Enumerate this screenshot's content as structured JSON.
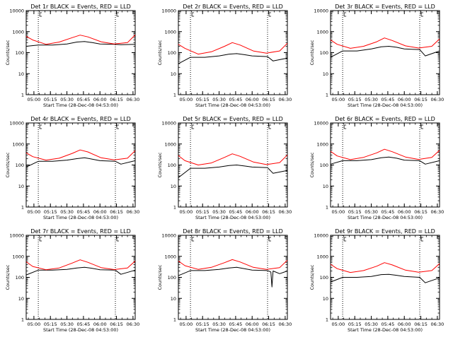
{
  "figure": {
    "xlabel": "Start Time (28-Dec-08 04:53:00)",
    "ylabel": "Counts/sec",
    "x_tick_labels": [
      "05:00",
      "05:15",
      "05:30",
      "05:45",
      "06:00",
      "06:15",
      "06:30"
    ],
    "x_tick_minutes": [
      7,
      22,
      37,
      52,
      67,
      82,
      97
    ],
    "x_range_minutes": [
      0,
      99
    ],
    "y_tick_labels": [
      "1",
      "10",
      "100",
      "1000",
      "10000"
    ],
    "y_range": [
      1,
      10000
    ],
    "y_scale": "log",
    "dotted_line_minutes": [
      11,
      81
    ],
    "colors": {
      "events": "#000000",
      "lld": "#ff0000",
      "axes": "#000000",
      "background": "#ffffff"
    }
  },
  "chart_data": [
    {
      "type": "line",
      "title": "Det 1r BLACK = Events, RED = LLD",
      "series": [
        {
          "x": [
            0,
            11,
            24,
            37,
            46,
            53,
            60,
            67,
            81,
            86,
            99
          ],
          "values": [
            200,
            230,
            230,
            260,
            320,
            340,
            300,
            260,
            250,
            240,
            250
          ]
        },
        {
          "x": [
            0,
            6,
            18,
            30,
            42,
            49,
            56,
            68,
            80,
            92,
            99
          ],
          "values": [
            600,
            400,
            250,
            320,
            520,
            680,
            560,
            330,
            260,
            300,
            700
          ]
        }
      ]
    },
    {
      "type": "line",
      "title": "Det 2r BLACK = Events, RED = LLD",
      "series": [
        {
          "x": [
            0,
            11,
            24,
            37,
            46,
            53,
            60,
            67,
            81,
            86,
            99
          ],
          "values": [
            30,
            60,
            60,
            70,
            85,
            90,
            80,
            70,
            65,
            40,
            55
          ]
        },
        {
          "x": [
            0,
            6,
            18,
            30,
            42,
            49,
            56,
            68,
            80,
            92,
            99
          ],
          "values": [
            250,
            160,
            85,
            110,
            200,
            300,
            230,
            120,
            95,
            120,
            280
          ]
        }
      ]
    },
    {
      "type": "line",
      "title": "Det 3r BLACK = Events, RED = LLD",
      "series": [
        {
          "x": [
            0,
            11,
            24,
            37,
            46,
            53,
            60,
            67,
            81,
            86,
            99
          ],
          "values": [
            60,
            120,
            120,
            150,
            190,
            200,
            180,
            150,
            140,
            70,
            120
          ]
        },
        {
          "x": [
            0,
            6,
            18,
            30,
            42,
            49,
            56,
            68,
            80,
            92,
            99
          ],
          "values": [
            400,
            250,
            160,
            200,
            330,
            500,
            380,
            210,
            165,
            200,
            450
          ]
        }
      ]
    },
    {
      "type": "line",
      "title": "Det 4r BLACK = Events, RED = LLD",
      "series": [
        {
          "x": [
            0,
            11,
            24,
            37,
            46,
            53,
            60,
            67,
            81,
            86,
            99
          ],
          "values": [
            80,
            150,
            150,
            170,
            200,
            220,
            190,
            160,
            150,
            110,
            160
          ]
        },
        {
          "x": [
            0,
            6,
            18,
            30,
            42,
            49,
            56,
            68,
            80,
            92,
            99
          ],
          "values": [
            380,
            250,
            170,
            210,
            360,
            520,
            420,
            220,
            175,
            210,
            480
          ]
        }
      ]
    },
    {
      "type": "line",
      "title": "Det 5r BLACK = Events, RED = LLD",
      "series": [
        {
          "x": [
            0,
            11,
            24,
            37,
            46,
            53,
            60,
            67,
            81,
            86,
            99
          ],
          "values": [
            25,
            70,
            70,
            80,
            95,
            100,
            90,
            80,
            75,
            40,
            55
          ]
        },
        {
          "x": [
            0,
            6,
            18,
            30,
            42,
            49,
            56,
            68,
            80,
            92,
            99
          ],
          "values": [
            280,
            160,
            100,
            125,
            230,
            340,
            260,
            140,
            105,
            130,
            300
          ]
        }
      ]
    },
    {
      "type": "line",
      "title": "Det 6r BLACK = Events, RED = LLD",
      "series": [
        {
          "x": [
            0,
            11,
            24,
            37,
            46,
            53,
            60,
            67,
            81,
            86,
            99
          ],
          "values": [
            110,
            160,
            160,
            180,
            220,
            240,
            210,
            170,
            160,
            110,
            160
          ]
        },
        {
          "x": [
            0,
            6,
            18,
            30,
            42,
            49,
            56,
            68,
            80,
            92,
            99
          ],
          "values": [
            450,
            270,
            180,
            230,
            380,
            560,
            430,
            240,
            185,
            230,
            500
          ]
        }
      ]
    },
    {
      "type": "line",
      "title": "Det 7r BLACK = Events, RED = LLD",
      "series": [
        {
          "x": [
            0,
            11,
            24,
            37,
            46,
            53,
            60,
            67,
            81,
            86,
            99
          ],
          "values": [
            130,
            220,
            220,
            240,
            280,
            300,
            270,
            230,
            220,
            140,
            220
          ]
        },
        {
          "x": [
            0,
            6,
            18,
            30,
            42,
            49,
            56,
            68,
            80,
            92,
            99
          ],
          "values": [
            550,
            330,
            230,
            280,
            480,
            680,
            520,
            290,
            235,
            280,
            600
          ]
        }
      ]
    },
    {
      "type": "line",
      "title": "Det 8r BLACK = Events, RED = LLD",
      "series": [
        {
          "x": [
            0,
            11,
            24,
            37,
            46,
            53,
            60,
            67,
            81,
            84,
            85,
            86,
            92,
            99
          ],
          "values": [
            120,
            210,
            210,
            240,
            280,
            300,
            260,
            220,
            210,
            180,
            35,
            200,
            150,
            200
          ]
        },
        {
          "x": [
            0,
            6,
            18,
            30,
            42,
            49,
            56,
            68,
            80,
            92,
            99
          ],
          "values": [
            600,
            360,
            240,
            300,
            500,
            700,
            540,
            300,
            240,
            290,
            650
          ]
        }
      ]
    },
    {
      "type": "line",
      "title": "Det 9r BLACK = Events, RED = LLD",
      "series": [
        {
          "x": [
            0,
            11,
            24,
            37,
            46,
            53,
            60,
            67,
            81,
            86,
            99
          ],
          "values": [
            60,
            100,
            100,
            110,
            135,
            140,
            125,
            110,
            100,
            55,
            95
          ]
        },
        {
          "x": [
            0,
            6,
            18,
            30,
            42,
            49,
            56,
            68,
            80,
            92,
            99
          ],
          "values": [
            420,
            260,
            170,
            210,
            340,
            500,
            390,
            220,
            175,
            210,
            450
          ]
        }
      ]
    }
  ]
}
